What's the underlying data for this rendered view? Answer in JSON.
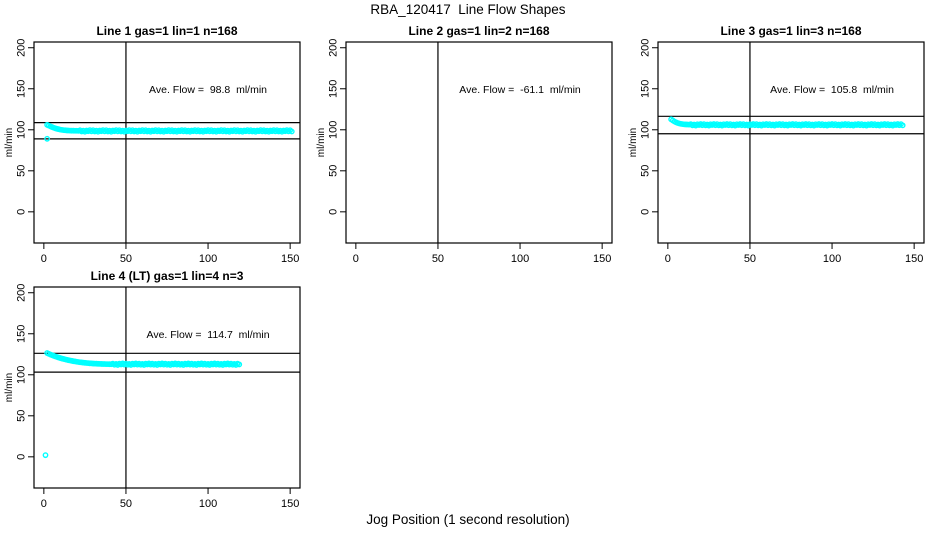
{
  "title": "RBA_120417  Line Flow Shapes",
  "xlabel": "Jog Position (1 second resolution)",
  "colors": {
    "marker": "#00ffff",
    "axis": "#000000",
    "background": "#ffffff"
  },
  "chart_data": [
    {
      "type": "scatter",
      "title": "Line 1 gas=1 lin=1 n=168",
      "ylabel": "ml/min",
      "annotation": "Ave. Flow =  98.8  ml/min",
      "annotation_xy": [
        100,
        150
      ],
      "ave_flow_ml_min": 98.8,
      "grid": {
        "row": 0,
        "col": 0
      },
      "xlim": [
        -6,
        156
      ],
      "ylim": [
        -38,
        207
      ],
      "xticks": [
        0,
        50,
        100,
        150
      ],
      "yticks": [
        0,
        50,
        100,
        150,
        200
      ],
      "vlines": [
        50
      ],
      "hlines": [
        108.7,
        88.9
      ],
      "points": {
        "x_start": 2,
        "x_step": 1,
        "y": [
          106.0,
          105.1,
          104.2,
          103.3,
          102.5,
          101.8,
          101.2,
          100.7,
          100.2,
          99.9,
          99.6,
          99.4,
          99.2,
          99.1,
          99.0,
          98.9,
          98.9,
          98.8,
          98.8,
          98.7,
          99.4,
          97.9,
          98.9,
          97.6,
          99.1,
          98.3,
          99.6,
          98.1,
          99.4,
          97.9,
          98.9,
          97.6,
          99.1,
          98.3,
          99.6,
          98.1,
          99.4,
          97.9,
          98.9,
          97.6,
          99.1,
          98.3,
          99.6,
          98.1,
          99.4,
          97.9,
          98.9,
          97.6,
          99.1,
          98.3,
          99.6,
          98.1,
          99.4,
          97.9,
          98.9,
          97.6,
          99.1,
          98.3,
          99.6,
          98.1,
          99.4,
          97.9,
          98.9,
          97.6,
          99.1,
          98.3,
          99.6,
          98.1,
          99.4,
          97.9,
          98.9,
          97.6,
          99.1,
          98.3,
          99.6,
          98.1,
          99.4,
          97.9,
          98.9,
          97.6,
          99.1,
          98.3,
          99.6,
          98.1,
          99.4,
          97.9,
          98.9,
          97.6,
          99.1,
          98.3,
          99.6,
          98.1,
          99.4,
          97.9,
          98.9,
          97.6,
          99.1,
          98.3,
          99.6,
          98.1,
          99.4,
          97.9,
          98.9,
          97.6,
          99.1,
          98.3,
          99.6,
          98.1,
          99.4,
          97.9,
          98.9,
          97.6,
          99.1,
          98.3,
          99.6,
          98.1,
          99.4,
          97.9,
          98.9,
          97.6,
          99.1,
          98.3,
          99.6,
          98.1,
          99.4,
          97.9,
          98.9,
          97.6,
          99.1,
          98.3,
          99.6,
          98.1,
          99.4,
          97.9,
          98.9,
          97.6,
          99.1,
          98.3,
          99.6,
          98.1,
          99.4,
          97.9,
          98.9,
          97.6,
          99.1,
          98.3,
          99.6,
          98.1,
          99.4,
          97.9
        ]
      },
      "extra_points": [
        [
          2,
          89
        ]
      ]
    },
    {
      "type": "scatter",
      "title": "Line 2 gas=1 lin=2 n=168",
      "ylabel": "ml/min",
      "annotation": "Ave. Flow =  -61.1  ml/min",
      "annotation_xy": [
        100,
        150
      ],
      "ave_flow_ml_min": -61.1,
      "grid": {
        "row": 0,
        "col": 1
      },
      "xlim": [
        -6,
        156
      ],
      "ylim": [
        -38,
        207
      ],
      "xticks": [
        0,
        50,
        100,
        150
      ],
      "yticks": [
        0,
        50,
        100,
        150,
        200
      ],
      "vlines": [
        50
      ],
      "hlines": [],
      "points": {
        "x_start": 2,
        "x_step": 1,
        "y": []
      },
      "extra_points": []
    },
    {
      "type": "scatter",
      "title": "Line 3 gas=1 lin=3 n=168",
      "ylabel": "ml/min",
      "annotation": "Ave. Flow =  105.8  ml/min",
      "annotation_xy": [
        100,
        150
      ],
      "ave_flow_ml_min": 105.8,
      "grid": {
        "row": 0,
        "col": 2
      },
      "xlim": [
        -6,
        156
      ],
      "ylim": [
        -38,
        207
      ],
      "xticks": [
        0,
        50,
        100,
        150
      ],
      "yticks": [
        0,
        50,
        100,
        150,
        200
      ],
      "vlines": [
        50
      ],
      "hlines": [
        116.4,
        95.2
      ],
      "points": {
        "x_start": 2,
        "x_step": 1,
        "y": [
          112.8,
          111.4,
          110.1,
          109.1,
          108.3,
          107.7,
          107.2,
          106.9,
          106.6,
          106.5,
          106.4,
          106.3,
          106.9,
          105.4,
          106.4,
          105.1,
          106.7,
          105.8,
          107.0,
          105.6,
          106.9,
          105.4,
          106.4,
          105.1,
          106.7,
          105.8,
          107.0,
          105.6,
          106.9,
          105.4,
          106.4,
          105.1,
          106.7,
          105.8,
          107.0,
          105.6,
          106.9,
          105.4,
          106.4,
          105.1,
          106.7,
          105.8,
          107.0,
          105.6,
          106.9,
          105.4,
          106.4,
          105.1,
          106.7,
          105.8,
          107.0,
          105.6,
          106.9,
          105.4,
          106.4,
          105.1,
          106.7,
          105.8,
          107.0,
          105.6,
          106.9,
          105.4,
          106.4,
          105.1,
          106.7,
          105.8,
          107.0,
          105.6,
          106.9,
          105.4,
          106.4,
          105.1,
          106.7,
          105.8,
          107.0,
          105.6,
          106.9,
          105.4,
          106.4,
          105.1,
          106.7,
          105.8,
          107.0,
          105.6,
          106.9,
          105.4,
          106.4,
          105.1,
          106.7,
          105.8,
          107.0,
          105.6,
          106.9,
          105.4,
          106.4,
          105.1,
          106.7,
          105.8,
          107.0,
          105.6,
          106.9,
          105.4,
          106.4,
          105.1,
          106.7,
          105.8,
          107.0,
          105.6,
          106.9,
          105.4,
          106.4,
          105.1,
          106.7,
          105.8,
          107.0,
          105.6,
          106.9,
          105.4,
          106.4,
          105.1,
          106.7,
          105.8,
          107.0,
          105.6,
          106.9,
          105.4,
          106.4,
          105.1,
          106.7,
          105.8,
          107.0,
          105.6,
          106.9,
          105.4,
          106.4,
          105.1,
          106.7,
          105.8,
          107.0,
          105.6,
          106.9,
          105.4
        ]
      },
      "extra_points": []
    },
    {
      "type": "scatter",
      "title": "Line 4 (LT) gas=1 lin=4 n=3",
      "ylabel": "ml/min",
      "annotation": "Ave. Flow =  114.7  ml/min",
      "annotation_xy": [
        100,
        150
      ],
      "ave_flow_ml_min": 114.7,
      "grid": {
        "row": 1,
        "col": 0
      },
      "xlim": [
        -6,
        156
      ],
      "ylim": [
        -38,
        207
      ],
      "xticks": [
        0,
        50,
        100,
        150
      ],
      "yticks": [
        0,
        50,
        100,
        150,
        200
      ],
      "vlines": [
        50
      ],
      "hlines": [
        126.2,
        103.2
      ],
      "points": {
        "x_start": 2,
        "x_step": 1,
        "y": [
          126.5,
          125.6,
          124.7,
          123.9,
          123.1,
          122.4,
          121.7,
          121.0,
          120.4,
          119.8,
          119.3,
          118.8,
          118.3,
          117.8,
          117.4,
          117.0,
          116.6,
          116.3,
          115.9,
          115.6,
          115.3,
          115.1,
          114.8,
          114.6,
          114.4,
          114.2,
          114.0,
          113.9,
          113.7,
          113.6,
          113.5,
          113.4,
          113.3,
          113.2,
          113.1,
          113.1,
          113.0,
          113.0,
          112.9,
          112.9,
          113.6,
          112.3,
          113.2,
          112.0,
          113.5,
          112.6,
          113.8,
          112.4,
          113.6,
          112.3,
          113.2,
          112.0,
          113.5,
          112.6,
          113.8,
          112.4,
          113.6,
          112.3,
          113.2,
          112.0,
          113.5,
          112.6,
          113.8,
          112.4,
          113.6,
          112.3,
          113.2,
          112.0,
          113.5,
          112.6,
          113.8,
          112.4,
          113.6,
          112.3,
          113.2,
          112.0,
          113.5,
          112.6,
          113.8,
          112.4,
          113.6,
          112.3,
          113.2,
          112.0,
          113.5,
          112.6,
          113.8,
          112.4,
          113.6,
          112.3,
          113.2,
          112.0,
          113.5,
          112.6,
          113.8,
          112.4,
          113.6,
          112.3,
          113.2,
          112.0,
          113.5,
          112.6,
          113.8,
          112.4,
          113.6,
          112.3,
          113.2,
          112.0,
          113.5,
          112.6,
          113.8,
          112.4,
          113.6,
          112.3,
          113.2,
          112.0,
          113.5,
          112.6
        ]
      },
      "extra_points": [
        [
          1,
          2
        ]
      ]
    }
  ]
}
